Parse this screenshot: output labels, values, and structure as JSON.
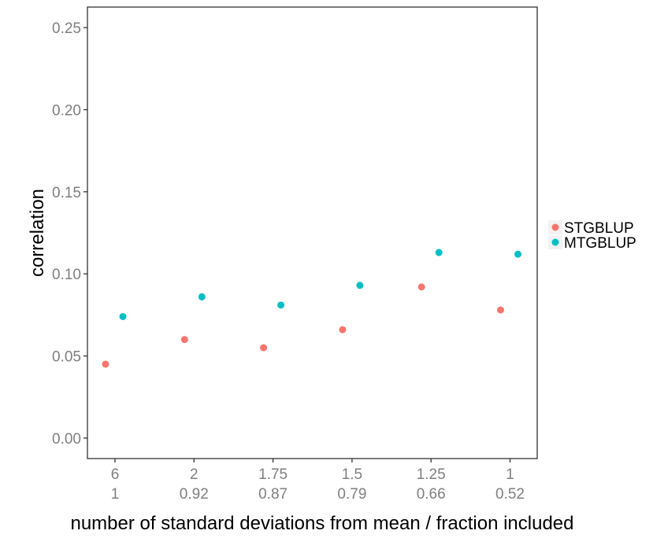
{
  "chart_data": {
    "type": "scatter",
    "xlabel": "number of standard deviations from mean / fraction included",
    "ylabel": "correlation",
    "categories": [
      {
        "line1": "6",
        "line2": "1"
      },
      {
        "line1": "2",
        "line2": "0.92"
      },
      {
        "line1": "1.75",
        "line2": "0.87"
      },
      {
        "line1": "1.5",
        "line2": "0.79"
      },
      {
        "line1": "1.25",
        "line2": "0.66"
      },
      {
        "line1": "1",
        "line2": "0.52"
      }
    ],
    "yticks": [
      "0.00",
      "0.05",
      "0.10",
      "0.15",
      "0.20",
      "0.25"
    ],
    "ylim": [
      -0.0125,
      0.2625
    ],
    "grid": false,
    "legend_position": "right",
    "series": [
      {
        "name": "STGBLUP",
        "color": "#F8766D",
        "values": [
          0.045,
          0.06,
          0.055,
          0.066,
          0.092,
          0.078
        ]
      },
      {
        "name": "MTGBLUP",
        "color": "#00BFC4",
        "values": [
          0.074,
          0.086,
          0.081,
          0.093,
          0.113,
          0.112
        ]
      }
    ]
  }
}
